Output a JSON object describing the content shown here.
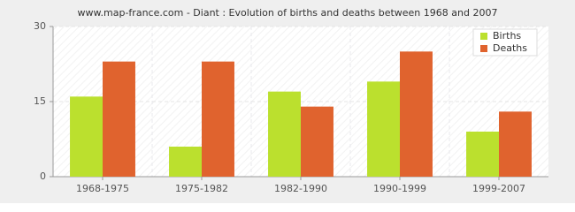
{
  "chart_data": {
    "type": "grouped_bar",
    "title": "www.map-france.com - Diant : Evolution of births and deaths between 1968 and 2007",
    "categories": [
      "1968-1975",
      "1975-1982",
      "1982-1990",
      "1990-1999",
      "1999-2007"
    ],
    "series": [
      {
        "name": "Births",
        "color": "#bbe02e",
        "values": [
          16,
          6,
          17,
          19,
          9
        ]
      },
      {
        "name": "Deaths",
        "color": "#e0632e",
        "values": [
          23,
          23,
          14,
          25,
          13
        ]
      }
    ],
    "ylim": [
      0,
      30
    ],
    "yticks": [
      0,
      15,
      30
    ],
    "grid": true,
    "legend": "top-right"
  }
}
